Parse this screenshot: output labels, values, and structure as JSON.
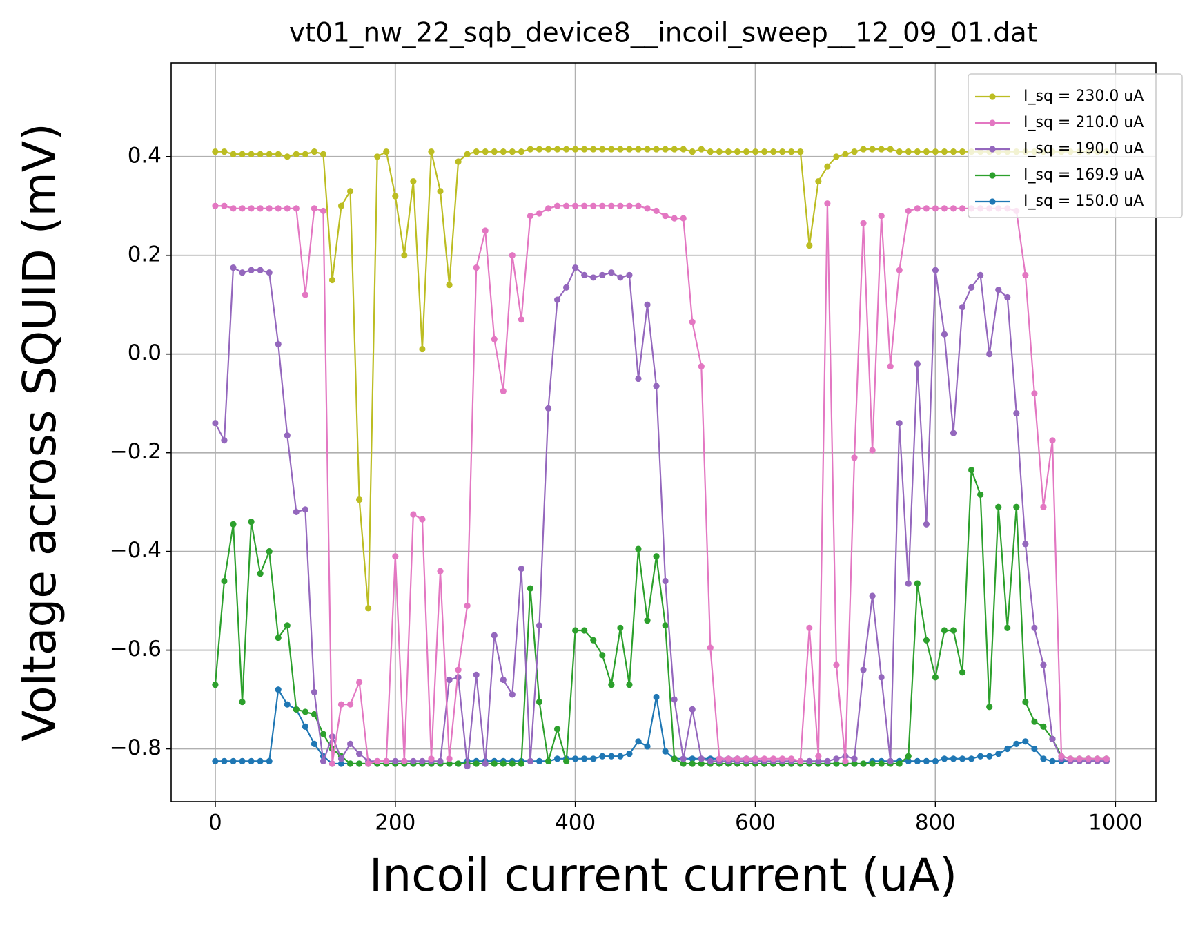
{
  "chart_data": {
    "type": "line",
    "title": "vt01_nw_22_sqb_device8__incoil_sweep__12_09_01.dat",
    "x_label": "Incoil current current (uA)",
    "y_label": "Voltage across SQUID (mV)",
    "xlim": [
      -49,
      1045
    ],
    "ylim": [
      -0.907,
      0.59
    ],
    "xticks": [
      0,
      200,
      400,
      600,
      800,
      1000
    ],
    "yticks": [
      {
        "value": -0.8,
        "label": "−0.8"
      },
      {
        "value": -0.6,
        "label": "−0.6"
      },
      {
        "value": -0.4,
        "label": "−0.4"
      },
      {
        "value": -0.2,
        "label": "−0.2"
      },
      {
        "value": 0.0,
        "label": "0.0"
      },
      {
        "value": 0.2,
        "label": "0.2"
      },
      0.4
    ],
    "grid": true,
    "legend": "upper right",
    "x": [
      0,
      10,
      20,
      30,
      40,
      50,
      60,
      70,
      80,
      90,
      100,
      110,
      120,
      130,
      140,
      150,
      160,
      170,
      180,
      190,
      200,
      210,
      220,
      230,
      240,
      250,
      260,
      270,
      280,
      290,
      300,
      310,
      320,
      330,
      340,
      350,
      360,
      370,
      380,
      390,
      400,
      410,
      420,
      430,
      440,
      450,
      460,
      470,
      480,
      490,
      500,
      510,
      520,
      530,
      540,
      550,
      560,
      570,
      580,
      590,
      600,
      610,
      620,
      630,
      640,
      650,
      660,
      670,
      680,
      690,
      700,
      710,
      720,
      730,
      740,
      750,
      760,
      770,
      780,
      790,
      800,
      810,
      820,
      830,
      840,
      850,
      860,
      870,
      880,
      890,
      900,
      910,
      920,
      930,
      940,
      950,
      960,
      970,
      980,
      990
    ],
    "series": [
      {
        "name": "I_sq = 230.0 uA",
        "color": "#bcbd22",
        "values": [
          0.41,
          0.41,
          0.405,
          0.405,
          0.405,
          0.405,
          0.405,
          0.405,
          0.4,
          0.405,
          0.405,
          0.41,
          0.405,
          0.15,
          0.3,
          0.33,
          -0.295,
          -0.515,
          0.4,
          0.41,
          0.32,
          0.2,
          0.35,
          0.01,
          0.41,
          0.33,
          0.14,
          0.39,
          0.405,
          0.41,
          0.41,
          0.41,
          0.41,
          0.41,
          0.41,
          0.415,
          0.415,
          0.415,
          0.415,
          0.415,
          0.415,
          0.415,
          0.415,
          0.415,
          0.415,
          0.415,
          0.415,
          0.415,
          0.415,
          0.415,
          0.415,
          0.415,
          0.415,
          0.41,
          0.415,
          0.41,
          0.41,
          0.41,
          0.41,
          0.41,
          0.41,
          0.41,
          0.41,
          0.41,
          0.41,
          0.41,
          0.22,
          0.35,
          0.38,
          0.4,
          0.405,
          0.41,
          0.415,
          0.415,
          0.415,
          0.415,
          0.41,
          0.41,
          0.41,
          0.41,
          0.41,
          0.41,
          0.41,
          0.41,
          0.41,
          0.41,
          0.41,
          0.41,
          0.41,
          0.41,
          0.41,
          0.41,
          0.41,
          0.41,
          0.41,
          0.41,
          0.41,
          0.41,
          0.41,
          0.41
        ]
      },
      {
        "name": "I_sq = 210.0 uA",
        "color": "#e377c2",
        "values": [
          0.3,
          0.3,
          0.295,
          0.295,
          0.295,
          0.295,
          0.295,
          0.295,
          0.295,
          0.295,
          0.12,
          0.295,
          0.29,
          -0.83,
          -0.71,
          -0.71,
          -0.665,
          -0.83,
          -0.825,
          -0.825,
          -0.41,
          -0.825,
          -0.325,
          -0.335,
          -0.82,
          -0.44,
          -0.82,
          -0.64,
          -0.51,
          0.175,
          0.25,
          0.03,
          -0.075,
          0.2,
          0.07,
          0.28,
          0.285,
          0.295,
          0.3,
          0.3,
          0.3,
          0.3,
          0.3,
          0.3,
          0.3,
          0.3,
          0.3,
          0.3,
          0.295,
          0.29,
          0.28,
          0.275,
          0.275,
          0.065,
          -0.025,
          -0.595,
          -0.82,
          -0.82,
          -0.82,
          -0.82,
          -0.82,
          -0.82,
          -0.82,
          -0.82,
          -0.82,
          -0.825,
          -0.555,
          -0.815,
          0.305,
          -0.63,
          -0.825,
          -0.21,
          0.265,
          -0.195,
          0.28,
          -0.025,
          0.17,
          0.29,
          0.295,
          0.295,
          0.295,
          0.295,
          0.295,
          0.295,
          0.295,
          0.295,
          0.295,
          0.295,
          0.295,
          0.29,
          0.16,
          -0.08,
          -0.31,
          -0.175,
          -0.815,
          -0.82,
          -0.82,
          -0.82,
          -0.82,
          -0.82
        ]
      },
      {
        "name": "I_sq = 190.0 uA",
        "color": "#9467bd",
        "values": [
          -0.14,
          -0.175,
          0.175,
          0.165,
          0.17,
          0.17,
          0.165,
          0.02,
          -0.165,
          -0.32,
          -0.315,
          -0.685,
          -0.825,
          -0.775,
          -0.82,
          -0.79,
          -0.81,
          -0.825,
          -0.825,
          -0.825,
          -0.825,
          -0.825,
          -0.825,
          -0.825,
          -0.825,
          -0.825,
          -0.66,
          -0.655,
          -0.835,
          -0.65,
          -0.83,
          -0.57,
          -0.66,
          -0.69,
          -0.435,
          -0.825,
          -0.55,
          -0.11,
          0.11,
          0.135,
          0.175,
          0.16,
          0.155,
          0.16,
          0.165,
          0.155,
          0.16,
          -0.05,
          0.1,
          -0.065,
          -0.46,
          -0.7,
          -0.82,
          -0.72,
          -0.82,
          -0.825,
          -0.825,
          -0.825,
          -0.825,
          -0.825,
          -0.825,
          -0.825,
          -0.825,
          -0.825,
          -0.825,
          -0.825,
          -0.825,
          -0.825,
          -0.825,
          -0.82,
          -0.815,
          -0.82,
          -0.64,
          -0.49,
          -0.655,
          -0.825,
          -0.14,
          -0.465,
          -0.02,
          -0.345,
          0.17,
          0.04,
          -0.16,
          0.095,
          0.135,
          0.16,
          0.0,
          0.13,
          0.115,
          -0.12,
          -0.385,
          -0.555,
          -0.63,
          -0.78,
          -0.82,
          -0.825,
          -0.825,
          -0.825,
          -0.825,
          -0.825
        ]
      },
      {
        "name": "I_sq = 169.9 uA",
        "color": "#2ca02c",
        "values": [
          -0.67,
          -0.46,
          -0.345,
          -0.705,
          -0.34,
          -0.445,
          -0.4,
          -0.575,
          -0.55,
          -0.72,
          -0.725,
          -0.73,
          -0.77,
          -0.8,
          -0.815,
          -0.83,
          -0.83,
          -0.83,
          -0.83,
          -0.83,
          -0.83,
          -0.83,
          -0.83,
          -0.83,
          -0.83,
          -0.83,
          -0.83,
          -0.83,
          -0.83,
          -0.83,
          -0.83,
          -0.83,
          -0.83,
          -0.83,
          -0.83,
          -0.475,
          -0.705,
          -0.825,
          -0.76,
          -0.825,
          -0.56,
          -0.56,
          -0.58,
          -0.61,
          -0.67,
          -0.555,
          -0.67,
          -0.395,
          -0.54,
          -0.41,
          -0.55,
          -0.82,
          -0.83,
          -0.83,
          -0.83,
          -0.83,
          -0.83,
          -0.83,
          -0.83,
          -0.83,
          -0.83,
          -0.83,
          -0.83,
          -0.83,
          -0.83,
          -0.83,
          -0.83,
          -0.83,
          -0.83,
          -0.83,
          -0.83,
          -0.83,
          -0.83,
          -0.83,
          -0.83,
          -0.83,
          -0.83,
          -0.815,
          -0.465,
          -0.58,
          -0.655,
          -0.56,
          -0.56,
          -0.645,
          -0.235,
          -0.285,
          -0.715,
          -0.31,
          -0.555,
          -0.31,
          -0.705,
          -0.745,
          -0.755,
          -0.78,
          -0.815,
          -0.82,
          -0.82,
          -0.82,
          -0.82,
          -0.82
        ]
      },
      {
        "name": "I_sq = 150.0 uA",
        "color": "#1f77b4",
        "values": [
          -0.825,
          -0.825,
          -0.825,
          -0.825,
          -0.825,
          -0.825,
          -0.825,
          -0.68,
          -0.71,
          -0.72,
          -0.755,
          -0.79,
          -0.815,
          -0.83,
          -0.83,
          -0.83,
          -0.83,
          -0.83,
          -0.83,
          -0.83,
          -0.83,
          -0.83,
          -0.83,
          -0.83,
          -0.83,
          -0.83,
          -0.83,
          -0.83,
          -0.825,
          -0.825,
          -0.825,
          -0.825,
          -0.825,
          -0.825,
          -0.825,
          -0.825,
          -0.825,
          -0.825,
          -0.82,
          -0.82,
          -0.82,
          -0.82,
          -0.82,
          -0.815,
          -0.815,
          -0.815,
          -0.81,
          -0.785,
          -0.795,
          -0.695,
          -0.805,
          -0.82,
          -0.82,
          -0.82,
          -0.82,
          -0.82,
          -0.82,
          -0.82,
          -0.82,
          -0.82,
          -0.82,
          -0.83,
          -0.83,
          -0.83,
          -0.83,
          -0.83,
          -0.83,
          -0.83,
          -0.83,
          -0.83,
          -0.83,
          -0.83,
          -0.83,
          -0.825,
          -0.825,
          -0.825,
          -0.825,
          -0.825,
          -0.825,
          -0.825,
          -0.825,
          -0.82,
          -0.82,
          -0.82,
          -0.82,
          -0.815,
          -0.815,
          -0.81,
          -0.8,
          -0.79,
          -0.785,
          -0.8,
          -0.82,
          -0.825,
          -0.825,
          -0.825,
          -0.825,
          -0.825,
          -0.825,
          -0.825
        ]
      }
    ]
  }
}
